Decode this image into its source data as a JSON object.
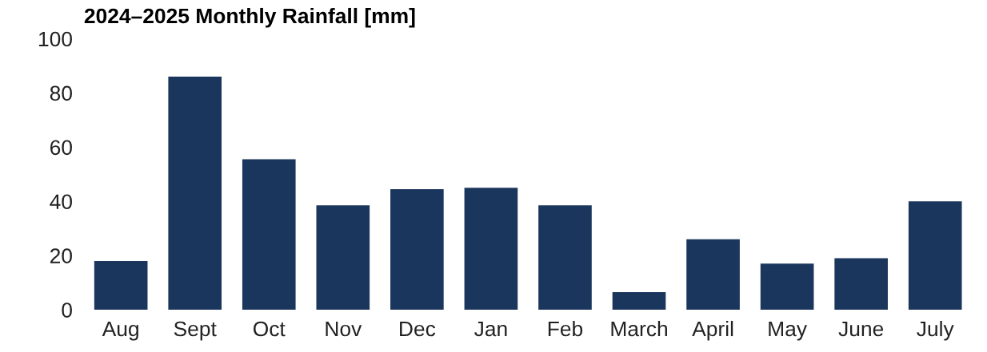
{
  "chart_data": {
    "type": "bar",
    "title": "2024–2025 Monthly Rainfall [mm]",
    "categories": [
      "Aug",
      "Sept",
      "Oct",
      "Nov",
      "Dec",
      "Jan",
      "Feb",
      "March",
      "April",
      "May",
      "June",
      "July"
    ],
    "values": [
      18,
      86,
      55.5,
      38.5,
      44.5,
      45,
      38.5,
      6.5,
      26,
      17,
      19,
      40
    ],
    "color": "#1b365d",
    "ylim": [
      0,
      100
    ],
    "yticks": [
      0,
      20,
      40,
      60,
      80,
      100
    ],
    "grid": false
  }
}
